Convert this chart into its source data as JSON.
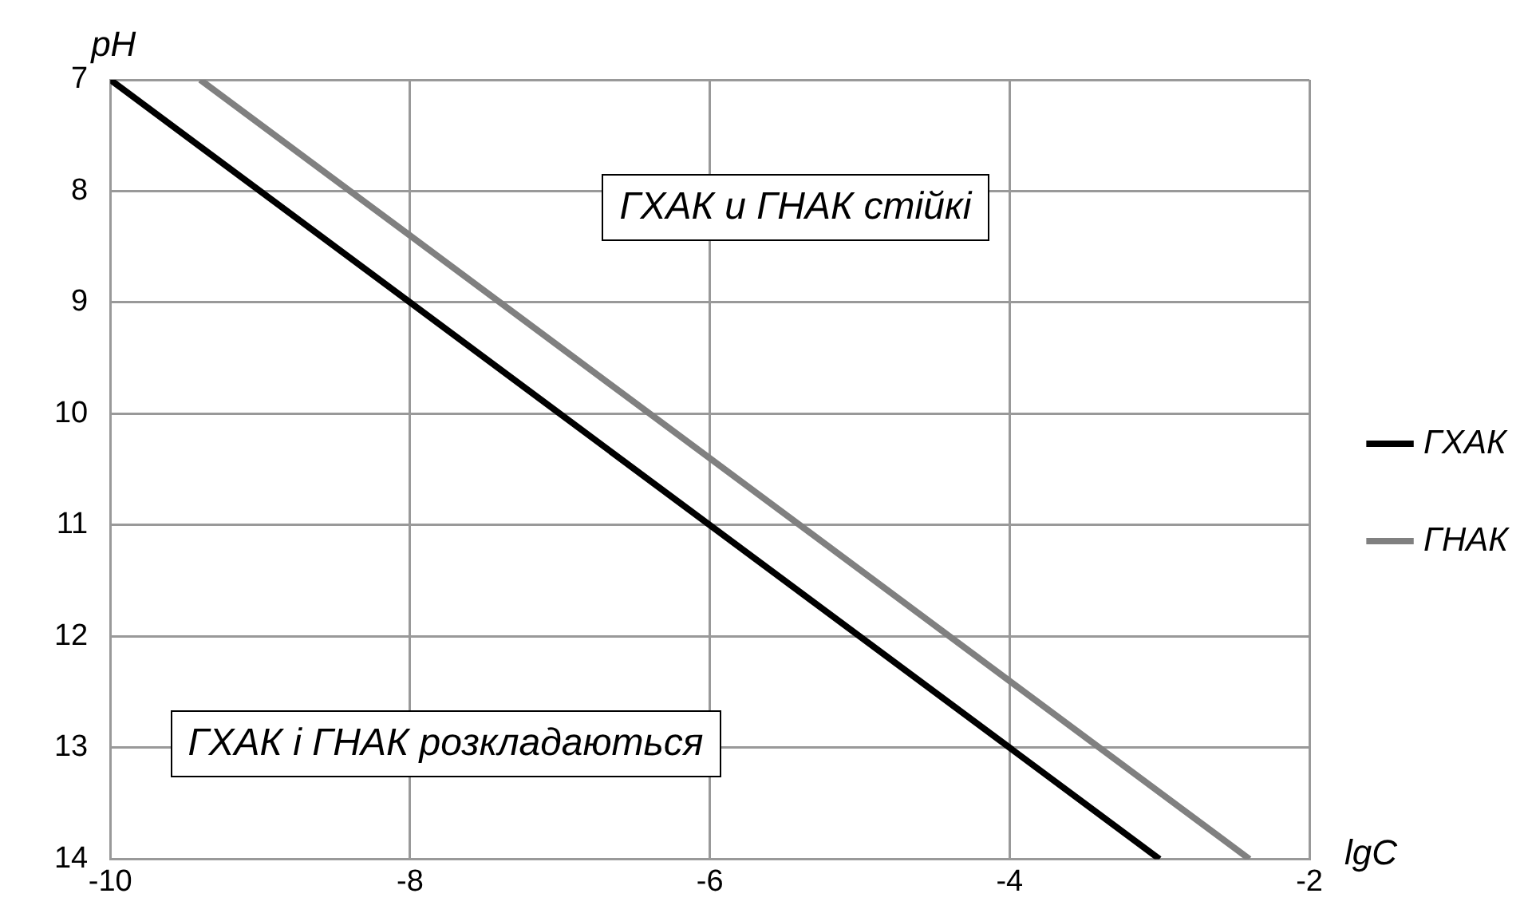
{
  "chart_data": {
    "type": "line",
    "xlabel": "lgC",
    "ylabel": "pH",
    "series": [
      {
        "name": "ГХАК",
        "color": "#000000",
        "x": [
          -10,
          -3
        ],
        "values": [
          7,
          14
        ]
      },
      {
        "name": "ГНАК",
        "color": "#808080",
        "x": [
          -9.4,
          -2.4
        ],
        "values": [
          7,
          14
        ]
      }
    ],
    "xlim": [
      -10,
      -2
    ],
    "xticks": [
      -10,
      -8,
      -6,
      -4,
      -2
    ],
    "ylim": [
      14,
      7
    ],
    "yticks": [
      7,
      8,
      9,
      10,
      11,
      12,
      13,
      14
    ],
    "grid": true,
    "legend": "right",
    "marker": "none",
    "line_style": "solid",
    "annotations": [
      "ГХАК и ГНАК стійкі",
      "ГХАК і ГНАК розкладаються"
    ]
  }
}
